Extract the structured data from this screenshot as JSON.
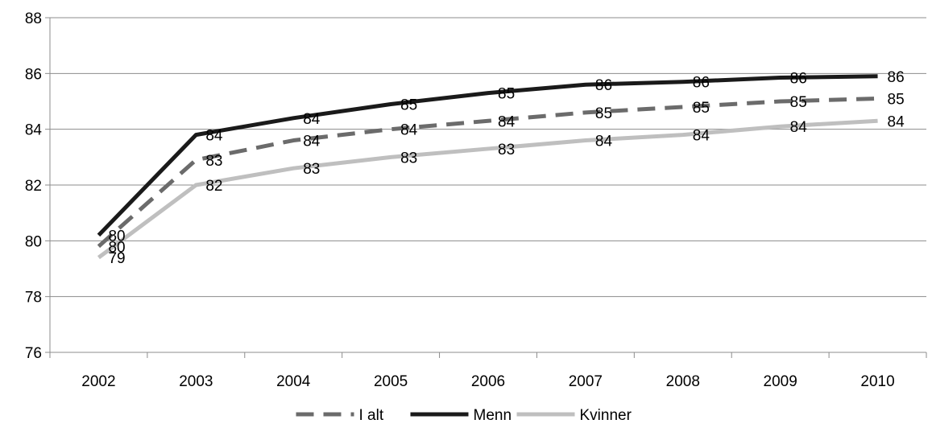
{
  "chart_data": {
    "type": "line",
    "title": "",
    "xlabel": "",
    "ylabel": "",
    "categories": [
      "2002",
      "2003",
      "2004",
      "2005",
      "2006",
      "2007",
      "2008",
      "2009",
      "2010"
    ],
    "ylim": [
      76,
      88
    ],
    "yticks": [
      "76",
      "78",
      "80",
      "82",
      "84",
      "86",
      "88"
    ],
    "grid": "horizontal",
    "legend_position": "bottom",
    "series": [
      {
        "name": "I alt",
        "values": [
          79.8,
          82.9,
          83.6,
          84.0,
          84.3,
          84.6,
          84.8,
          85.0,
          85.1
        ],
        "labels": [
          "80",
          "83",
          "84",
          "84",
          "84",
          "85",
          "85",
          "85",
          "85"
        ],
        "color": "#6b6b6b",
        "style": "dashed"
      },
      {
        "name": "Menn",
        "values": [
          80.2,
          83.8,
          84.4,
          84.9,
          85.3,
          85.6,
          85.7,
          85.85,
          85.9
        ],
        "labels": [
          "80",
          "84",
          "84",
          "85",
          "85",
          "86",
          "86",
          "86",
          "86"
        ],
        "color": "#1a1a1a",
        "style": "solid"
      },
      {
        "name": "Kvinner",
        "values": [
          79.4,
          82.0,
          82.6,
          83.0,
          83.3,
          83.6,
          83.8,
          84.1,
          84.3
        ],
        "labels": [
          "79",
          "82",
          "83",
          "83",
          "83",
          "84",
          "84",
          "84",
          "84"
        ],
        "color": "#bfbfbf",
        "style": "solid"
      }
    ]
  }
}
